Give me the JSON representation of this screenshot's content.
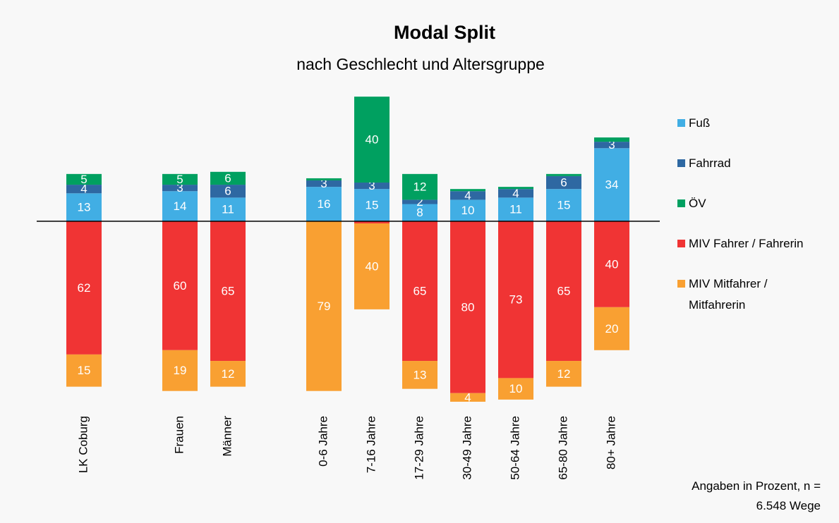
{
  "chart_data": {
    "type": "diverging-stacked-bar",
    "title": "Modal Split",
    "subtitle": "nach Geschlecht und Altersgruppe",
    "note": "Angaben in Prozent, n = 6.548 Wege",
    "categories": [
      "LK Coburg",
      null,
      "Frauen",
      "Männer",
      null,
      "0-6 Jahre",
      "7-16 Jahre",
      "17-29 Jahre",
      "30-49 Jahre",
      "50-64 Jahre",
      "65-80 Jahre",
      "80+ Jahre"
    ],
    "ylim": [
      -85,
      60
    ],
    "series": [
      {
        "name": "Fuß",
        "color": "#41aee4",
        "side": "up",
        "values": [
          13,
          null,
          14,
          11,
          null,
          16,
          15,
          8,
          10,
          11,
          15,
          34
        ]
      },
      {
        "name": "Fahrrad",
        "color": "#2e68a2",
        "side": "up",
        "values": [
          4,
          null,
          3,
          6,
          null,
          3,
          3,
          2,
          4,
          4,
          6,
          3
        ]
      },
      {
        "name": "ÖV",
        "color": "#00a060",
        "side": "up",
        "values": [
          5,
          null,
          5,
          6,
          null,
          1,
          40,
          12,
          1,
          1,
          1,
          2
        ],
        "value_labels": [
          "5",
          null,
          "5",
          "6",
          null,
          null,
          "40",
          "12",
          null,
          null,
          null,
          null
        ]
      },
      {
        "name": "MIV Fahrer / Fahrerin",
        "color": "#f03434",
        "side": "down",
        "values": [
          62,
          null,
          60,
          65,
          null,
          0,
          1,
          65,
          80,
          73,
          65,
          40
        ],
        "value_labels": [
          "62",
          null,
          "60",
          "65",
          null,
          null,
          null,
          "65",
          "80",
          "73",
          "65",
          "40"
        ]
      },
      {
        "name": "MIV Mitfahrer / Mitfahrerin",
        "color": "#f9a032",
        "side": "down",
        "values": [
          15,
          null,
          19,
          12,
          null,
          79,
          40,
          13,
          4,
          10,
          12,
          20
        ]
      }
    ]
  }
}
